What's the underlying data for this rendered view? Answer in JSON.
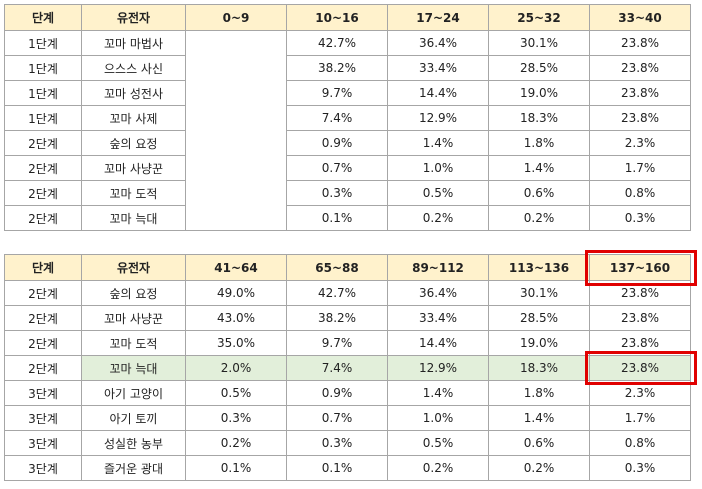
{
  "table1": {
    "headers": [
      "단계",
      "유전자",
      "0~9",
      "10~16",
      "17~24",
      "25~32",
      "33~40"
    ],
    "rows": [
      [
        "1단계",
        "꼬마 마법사",
        "",
        "42.7%",
        "36.4%",
        "30.1%",
        "23.8%"
      ],
      [
        "1단계",
        "으스스 사신",
        "",
        "38.2%",
        "33.4%",
        "28.5%",
        "23.8%"
      ],
      [
        "1단계",
        "꼬마 성전사",
        "",
        "9.7%",
        "14.4%",
        "19.0%",
        "23.8%"
      ],
      [
        "1단계",
        "꼬마 사제",
        "",
        "7.4%",
        "12.9%",
        "18.3%",
        "23.8%"
      ],
      [
        "2단계",
        "숲의 요정",
        "",
        "0.9%",
        "1.4%",
        "1.8%",
        "2.3%"
      ],
      [
        "2단계",
        "꼬마 사냥꾼",
        "",
        "0.7%",
        "1.0%",
        "1.4%",
        "1.7%"
      ],
      [
        "2단계",
        "꼬마 도적",
        "",
        "0.3%",
        "0.5%",
        "0.6%",
        "0.8%"
      ],
      [
        "2단계",
        "꼬마 늑대",
        "",
        "0.1%",
        "0.2%",
        "0.2%",
        "0.3%"
      ]
    ]
  },
  "table2": {
    "headers": [
      "단계",
      "유전자",
      "41~64",
      "65~88",
      "89~112",
      "113~136",
      "137~160"
    ],
    "rows": [
      [
        "2단계",
        "숲의 요정",
        "49.0%",
        "42.7%",
        "36.4%",
        "30.1%",
        "23.8%"
      ],
      [
        "2단계",
        "꼬마 사냥꾼",
        "43.0%",
        "38.2%",
        "33.4%",
        "28.5%",
        "23.8%"
      ],
      [
        "2단계",
        "꼬마 도적",
        "35.0%",
        "9.7%",
        "14.4%",
        "19.0%",
        "23.8%"
      ],
      [
        "2단계",
        "꼬마 늑대",
        "2.0%",
        "7.4%",
        "12.9%",
        "18.3%",
        "23.8%"
      ],
      [
        "3단계",
        "아기 고양이",
        "0.5%",
        "0.9%",
        "1.4%",
        "1.8%",
        "2.3%"
      ],
      [
        "3단계",
        "아기 토끼",
        "0.3%",
        "0.7%",
        "1.0%",
        "1.4%",
        "1.7%"
      ],
      [
        "3단계",
        "성실한 농부",
        "0.2%",
        "0.3%",
        "0.5%",
        "0.6%",
        "0.8%"
      ],
      [
        "3단계",
        "즐거운 광대",
        "0.1%",
        "0.1%",
        "0.2%",
        "0.2%",
        "0.3%"
      ]
    ],
    "highlighted_row": 3
  },
  "colors": {
    "header_bg": "#fff2cc",
    "highlight_bg": "#e2efda",
    "outline_red": "#e00000",
    "grid": "#a6a6a6"
  }
}
